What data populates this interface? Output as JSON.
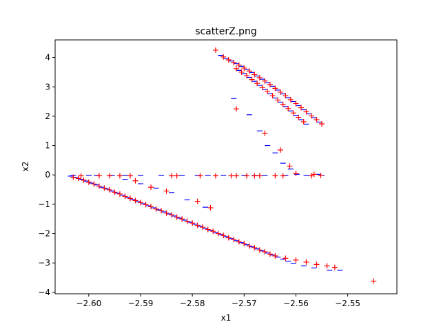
{
  "chart_data": {
    "type": "scatter",
    "title": "scatterZ.png",
    "xlabel": "x1",
    "ylabel": "x2",
    "xlim": [
      -2.6065,
      -2.5405
    ],
    "ylim": [
      -4.05,
      4.6
    ],
    "xticks": [
      -2.6,
      -2.59,
      -2.58,
      -2.57,
      -2.56,
      -2.55
    ],
    "xtick_labels": [
      "−2.60",
      "−2.59",
      "−2.58",
      "−2.57",
      "−2.56",
      "−2.55"
    ],
    "yticks": [
      -4,
      -3,
      -2,
      -1,
      0,
      1,
      2,
      3,
      4
    ],
    "ytick_labels": [
      "−4",
      "−3",
      "−2",
      "−1",
      "0",
      "1",
      "2",
      "3",
      "4"
    ],
    "grid": false,
    "legend": "none",
    "series": [
      {
        "marker": "_",
        "color": "#0000ff",
        "points": [
          [
            -2.6035,
            -0.04
          ],
          [
            -2.6025,
            -0.09
          ],
          [
            -2.6015,
            -0.15
          ],
          [
            -2.6005,
            -0.21
          ],
          [
            -2.5995,
            -0.28
          ],
          [
            -2.5985,
            -0.34
          ],
          [
            -2.5975,
            -0.42
          ],
          [
            -2.5965,
            -0.48
          ],
          [
            -2.5955,
            -0.55
          ],
          [
            -2.5945,
            -0.62
          ],
          [
            -2.5935,
            -0.69
          ],
          [
            -2.5925,
            -0.77
          ],
          [
            -2.5915,
            -0.84
          ],
          [
            -2.5905,
            -0.91
          ],
          [
            -2.5895,
            -0.98
          ],
          [
            -2.5885,
            -1.05
          ],
          [
            -2.5875,
            -1.12
          ],
          [
            -2.5865,
            -1.19
          ],
          [
            -2.5855,
            -1.26
          ],
          [
            -2.5845,
            -1.33
          ],
          [
            -2.5835,
            -1.4
          ],
          [
            -2.5825,
            -1.47
          ],
          [
            -2.5815,
            -1.54
          ],
          [
            -2.5805,
            -1.61
          ],
          [
            -2.5795,
            -1.68
          ],
          [
            -2.5785,
            -1.75
          ],
          [
            -2.5775,
            -1.82
          ],
          [
            -2.5765,
            -1.89
          ],
          [
            -2.5755,
            -1.96
          ],
          [
            -2.5745,
            -2.03
          ],
          [
            -2.5735,
            -2.1
          ],
          [
            -2.5725,
            -2.17
          ],
          [
            -2.5715,
            -2.24
          ],
          [
            -2.5705,
            -2.31
          ],
          [
            -2.5695,
            -2.38
          ],
          [
            -2.5685,
            -2.45
          ],
          [
            -2.5675,
            -2.52
          ],
          [
            -2.5665,
            -2.59
          ],
          [
            -2.5655,
            -2.66
          ],
          [
            -2.5645,
            -2.73
          ],
          [
            -2.5635,
            -2.8
          ],
          [
            -2.5625,
            -2.87
          ],
          [
            -2.5615,
            -2.94
          ],
          [
            -2.5605,
            -3.01
          ],
          [
            -2.5585,
            -3.1
          ],
          [
            -2.5565,
            -3.17
          ],
          [
            -2.5535,
            -3.25
          ],
          [
            -2.5515,
            -3.25
          ],
          [
            -2.603,
            -0.02
          ],
          [
            -2.6,
            -0.02
          ],
          [
            -2.5985,
            -0.02
          ],
          [
            -2.5955,
            -0.02
          ],
          [
            -2.593,
            -0.02
          ],
          [
            -2.59,
            -0.02
          ],
          [
            -2.586,
            -0.02
          ],
          [
            -2.582,
            -0.02
          ],
          [
            -2.579,
            -0.02
          ],
          [
            -2.577,
            -0.02
          ],
          [
            -2.574,
            -0.02
          ],
          [
            -2.57,
            -0.02
          ],
          [
            -2.568,
            -0.02
          ],
          [
            -2.566,
            -0.02
          ],
          [
            -2.562,
            -0.02
          ],
          [
            -2.558,
            -0.02
          ],
          [
            -2.593,
            -0.15
          ],
          [
            -2.59,
            -0.3
          ],
          [
            -2.587,
            -0.45
          ],
          [
            -2.584,
            -0.6
          ],
          [
            -2.581,
            -0.85
          ],
          [
            -2.5775,
            -1.1
          ],
          [
            -2.5745,
            4.07
          ],
          [
            -2.5735,
            3.97
          ],
          [
            -2.5725,
            3.88
          ],
          [
            -2.5715,
            3.79
          ],
          [
            -2.5705,
            3.7
          ],
          [
            -2.5695,
            3.59
          ],
          [
            -2.5685,
            3.49
          ],
          [
            -2.5675,
            3.37
          ],
          [
            -2.5665,
            3.26
          ],
          [
            -2.5655,
            3.14
          ],
          [
            -2.5645,
            3.02
          ],
          [
            -2.5635,
            2.89
          ],
          [
            -2.5625,
            2.76
          ],
          [
            -2.5615,
            2.63
          ],
          [
            -2.5605,
            2.5
          ],
          [
            -2.5595,
            2.36
          ],
          [
            -2.5585,
            2.22
          ],
          [
            -2.5575,
            2.08
          ],
          [
            -2.5565,
            1.95
          ],
          [
            -2.5555,
            1.8
          ],
          [
            -2.571,
            3.56
          ],
          [
            -2.57,
            3.45
          ],
          [
            -2.569,
            3.32
          ],
          [
            -2.568,
            3.19
          ],
          [
            -2.567,
            3.05
          ],
          [
            -2.566,
            2.91
          ],
          [
            -2.565,
            2.77
          ],
          [
            -2.564,
            2.62
          ],
          [
            -2.563,
            2.48
          ],
          [
            -2.562,
            2.33
          ],
          [
            -2.561,
            2.18
          ],
          [
            -2.56,
            2.03
          ],
          [
            -2.559,
            1.88
          ],
          [
            -2.558,
            1.73
          ],
          [
            -2.572,
            2.6
          ],
          [
            -2.569,
            2.05
          ],
          [
            -2.567,
            1.5
          ],
          [
            -2.5655,
            1.0
          ],
          [
            -2.564,
            0.75
          ],
          [
            -2.5625,
            0.4
          ],
          [
            -2.561,
            0.2
          ],
          [
            -2.5598,
            0.02
          ],
          [
            -2.5558,
            0.02
          ],
          [
            -2.555,
            -0.02
          ]
        ]
      },
      {
        "marker": "+",
        "color": "#ff0000",
        "points": [
          [
            -2.603,
            -0.08
          ],
          [
            -2.602,
            -0.12
          ],
          [
            -2.601,
            -0.18
          ],
          [
            -2.6,
            -0.25
          ],
          [
            -2.599,
            -0.31
          ],
          [
            -2.598,
            -0.38
          ],
          [
            -2.597,
            -0.45
          ],
          [
            -2.596,
            -0.51
          ],
          [
            -2.595,
            -0.59
          ],
          [
            -2.594,
            -0.65
          ],
          [
            -2.593,
            -0.73
          ],
          [
            -2.592,
            -0.8
          ],
          [
            -2.591,
            -0.87
          ],
          [
            -2.59,
            -0.94
          ],
          [
            -2.589,
            -1.01
          ],
          [
            -2.588,
            -1.08
          ],
          [
            -2.587,
            -1.16
          ],
          [
            -2.586,
            -1.22
          ],
          [
            -2.585,
            -1.3
          ],
          [
            -2.584,
            -1.36
          ],
          [
            -2.583,
            -1.44
          ],
          [
            -2.582,
            -1.5
          ],
          [
            -2.581,
            -1.58
          ],
          [
            -2.58,
            -1.64
          ],
          [
            -2.579,
            -1.72
          ],
          [
            -2.578,
            -1.78
          ],
          [
            -2.577,
            -1.86
          ],
          [
            -2.576,
            -1.92
          ],
          [
            -2.575,
            -2.0
          ],
          [
            -2.574,
            -2.06
          ],
          [
            -2.573,
            -2.14
          ],
          [
            -2.572,
            -2.2
          ],
          [
            -2.571,
            -2.28
          ],
          [
            -2.57,
            -2.34
          ],
          [
            -2.569,
            -2.42
          ],
          [
            -2.568,
            -2.48
          ],
          [
            -2.567,
            -2.56
          ],
          [
            -2.566,
            -2.62
          ],
          [
            -2.565,
            -2.7
          ],
          [
            -2.564,
            -2.76
          ],
          [
            -2.562,
            -2.84
          ],
          [
            -2.56,
            -2.9
          ],
          [
            -2.558,
            -2.97
          ],
          [
            -2.556,
            -3.05
          ],
          [
            -2.554,
            -3.1
          ],
          [
            -2.5525,
            -3.15
          ],
          [
            -2.545,
            -3.62
          ],
          [
            -2.6015,
            -0.03
          ],
          [
            -2.598,
            -0.03
          ],
          [
            -2.596,
            -0.03
          ],
          [
            -2.594,
            -0.03
          ],
          [
            -2.592,
            -0.03
          ],
          [
            -2.584,
            -0.03
          ],
          [
            -2.583,
            -0.03
          ],
          [
            -2.5785,
            -0.03
          ],
          [
            -2.5755,
            -0.03
          ],
          [
            -2.5725,
            -0.03
          ],
          [
            -2.5715,
            -0.03
          ],
          [
            -2.5695,
            -0.03
          ],
          [
            -2.568,
            -0.03
          ],
          [
            -2.567,
            -0.03
          ],
          [
            -2.564,
            -0.03
          ],
          [
            -2.5625,
            -0.03
          ],
          [
            -2.557,
            -0.03
          ],
          [
            -2.591,
            -0.2
          ],
          [
            -2.588,
            -0.42
          ],
          [
            -2.585,
            -0.55
          ],
          [
            -2.579,
            -0.9
          ],
          [
            -2.5765,
            -1.12
          ],
          [
            -2.5755,
            4.25
          ],
          [
            -2.574,
            4.02
          ],
          [
            -2.573,
            3.92
          ],
          [
            -2.572,
            3.83
          ],
          [
            -2.571,
            3.74
          ],
          [
            -2.57,
            3.64
          ],
          [
            -2.569,
            3.54
          ],
          [
            -2.568,
            3.42
          ],
          [
            -2.567,
            3.31
          ],
          [
            -2.566,
            3.2
          ],
          [
            -2.565,
            3.08
          ],
          [
            -2.564,
            2.95
          ],
          [
            -2.563,
            2.82
          ],
          [
            -2.562,
            2.7
          ],
          [
            -2.561,
            2.56
          ],
          [
            -2.56,
            2.43
          ],
          [
            -2.559,
            2.29
          ],
          [
            -2.558,
            2.15
          ],
          [
            -2.557,
            2.01
          ],
          [
            -2.556,
            1.88
          ],
          [
            -2.555,
            1.74
          ],
          [
            -2.5715,
            3.62
          ],
          [
            -2.5705,
            3.5
          ],
          [
            -2.5695,
            3.38
          ],
          [
            -2.5685,
            3.25
          ],
          [
            -2.5675,
            3.12
          ],
          [
            -2.5665,
            2.98
          ],
          [
            -2.5655,
            2.84
          ],
          [
            -2.5645,
            2.7
          ],
          [
            -2.5635,
            2.55
          ],
          [
            -2.5625,
            2.4
          ],
          [
            -2.5615,
            2.26
          ],
          [
            -2.5605,
            2.11
          ],
          [
            -2.5595,
            1.96
          ],
          [
            -2.5585,
            1.81
          ],
          [
            -2.5715,
            2.25
          ],
          [
            -2.566,
            1.42
          ],
          [
            -2.563,
            0.85
          ],
          [
            -2.5612,
            0.3
          ],
          [
            -2.56,
            0.05
          ],
          [
            -2.5565,
            0.02
          ],
          [
            -2.5552,
            -0.02
          ]
        ]
      }
    ]
  }
}
